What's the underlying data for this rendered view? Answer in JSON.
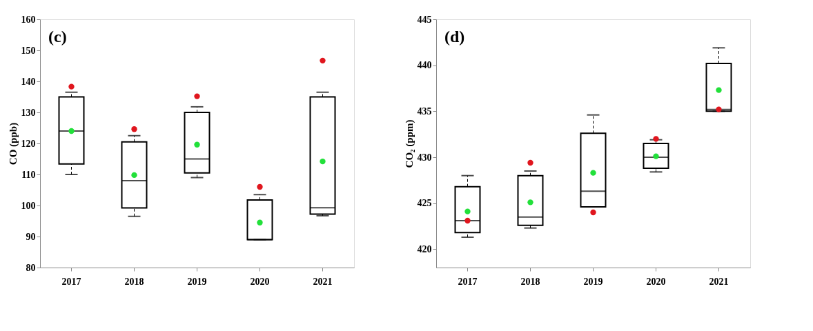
{
  "chart_data": [
    {
      "type": "box",
      "ylabel": "CO (ppb)",
      "annotations": [
        "(c)"
      ],
      "categories": [
        "2017",
        "2018",
        "2019",
        "2020",
        "2021"
      ],
      "ylim": [
        80,
        160
      ],
      "yticks": [
        80,
        90,
        100,
        110,
        120,
        130,
        140,
        150,
        160
      ],
      "grid": false,
      "boxes": [
        {
          "low": 110,
          "q1": 113.4,
          "median": 124,
          "q3": 135,
          "high": 136.5,
          "mean": 124,
          "outliers": [
            138.3
          ]
        },
        {
          "low": 96.5,
          "q1": 99.2,
          "median": 108,
          "q3": 120.5,
          "high": 122.5,
          "mean": 109.8,
          "outliers": [
            124.6
          ]
        },
        {
          "low": 109,
          "q1": 110.5,
          "median": 115,
          "q3": 130,
          "high": 131.8,
          "mean": 119.6,
          "outliers": [
            135.2
          ]
        },
        {
          "low": 89,
          "q1": 89,
          "median": 89,
          "q3": 101.8,
          "high": 103.5,
          "mean": 94.5,
          "outliers": [
            106
          ]
        },
        {
          "low": 96.7,
          "q1": 97.2,
          "median": 99.3,
          "q3": 135,
          "high": 136.5,
          "mean": 114.2,
          "outliers": [
            146.7
          ]
        }
      ]
    },
    {
      "type": "box",
      "ylabel": "CO₂ (ppm)",
      "annotations": [
        "(d)"
      ],
      "categories": [
        "2017",
        "2018",
        "2019",
        "2020",
        "2021"
      ],
      "ylim": [
        418,
        445
      ],
      "yticks": [
        420,
        425,
        430,
        435,
        440,
        445
      ],
      "grid": false,
      "boxes": [
        {
          "low": 421.3,
          "q1": 421.8,
          "median": 423.1,
          "q3": 426.8,
          "high": 428,
          "mean": 424.1,
          "outliers": [
            423.1
          ]
        },
        {
          "low": 422.3,
          "q1": 422.6,
          "median": 423.5,
          "q3": 428,
          "high": 428.5,
          "mean": 425.1,
          "outliers": [
            429.4
          ]
        },
        {
          "low": 424.6,
          "q1": 424.6,
          "median": 426.3,
          "q3": 432.6,
          "high": 434.6,
          "mean": 428.3,
          "outliers": [
            424
          ]
        },
        {
          "low": 428.4,
          "q1": 428.8,
          "median": 430,
          "q3": 431.5,
          "high": 431.9,
          "mean": 430.1,
          "outliers": [
            432
          ]
        },
        {
          "low": 435,
          "q1": 435,
          "median": 435.2,
          "q3": 440.2,
          "high": 441.9,
          "mean": 437.3,
          "outliers": [
            435.2
          ]
        }
      ]
    }
  ]
}
